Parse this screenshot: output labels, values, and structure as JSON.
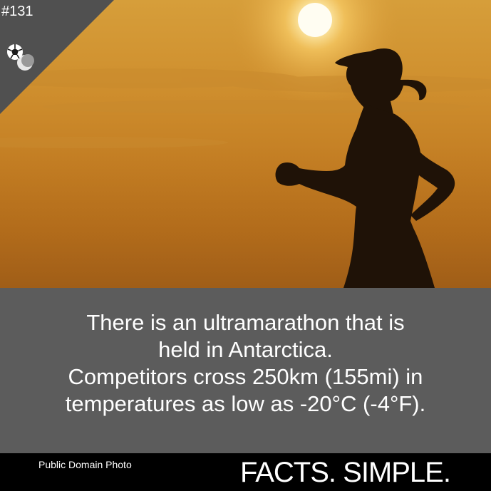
{
  "badge": {
    "number": "#131",
    "icon": "soccer-ball-and-moon-icon"
  },
  "photo": {
    "description_icon": "runner-silhouette"
  },
  "fact": {
    "lines": [
      "There is an ultramarathon that is",
      "held in Antarctica.",
      "Competitors cross 250km (155mi) in",
      "temperatures as low as -20°C (-4°F)."
    ]
  },
  "footer": {
    "credit": "Public Domain Photo",
    "brand": "FACTS. SIMPLE."
  },
  "colors": {
    "panel": "#5c5c5c",
    "footer": "#000000",
    "corner": "#505050",
    "text": "#ffffff"
  }
}
